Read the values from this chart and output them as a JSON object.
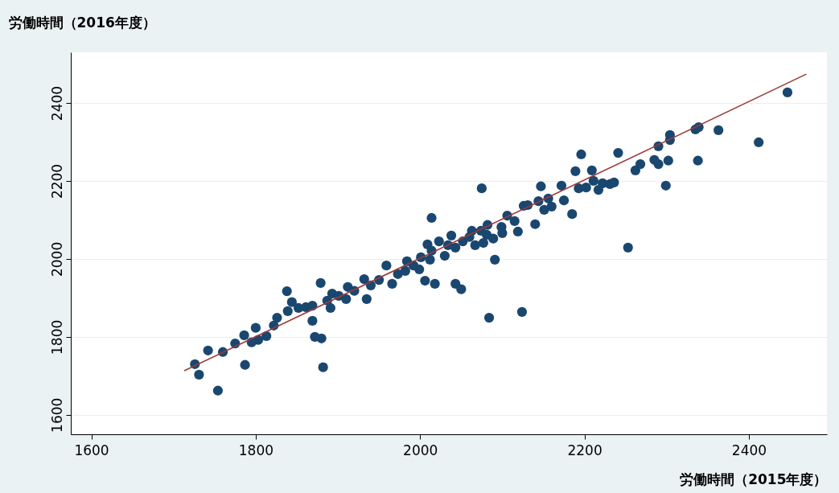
{
  "chart_data": {
    "type": "scatter",
    "xlabel": "労働時間（2015年度）",
    "ylabel": "労働時間（2016年度）",
    "xlim": [
      1575,
      2495
    ],
    "ylim": [
      1550,
      2530
    ],
    "xticks": [
      1600,
      1800,
      2000,
      2200,
      2400
    ],
    "yticks": [
      1600,
      1800,
      2000,
      2200,
      2400
    ],
    "grid": "y",
    "series": [
      {
        "marker": "circle",
        "color": "#1a476f",
        "x": [
          1726,
          1731,
          1742,
          1754,
          1760,
          1775,
          1787,
          1786,
          1800,
          1795,
          1803,
          1813,
          1822,
          1826,
          1838,
          1844,
          1839,
          1852,
          1861,
          1869,
          1869,
          1872,
          1880,
          1882,
          1879,
          1887,
          1891,
          1893,
          1901,
          1910,
          1912,
          1920,
          1932,
          1935,
          1940,
          1950,
          1959,
          1966,
          1973,
          1982,
          1984,
          1992,
          1999,
          2001,
          2006,
          2009,
          2012,
          2014,
          2014,
          2018,
          2023,
          2030,
          2034,
          2038,
          2043,
          2043,
          2050,
          2052,
          2060,
          2063,
          2067,
          2074,
          2077,
          2081,
          2084,
          2089,
          2091,
          2099,
          2075,
          2082,
          2100,
          2106,
          2115,
          2119,
          2124,
          2126,
          2131,
          2140,
          2144,
          2147,
          2151,
          2156,
          2160,
          2172,
          2175,
          2185,
          2189,
          2193,
          2196,
          2202,
          2209,
          2211,
          2217,
          2222,
          2231,
          2236,
          2241,
          2253,
          2262,
          2268,
          2285,
          2290,
          2299,
          2302,
          2290,
          2304,
          2304,
          2335,
          2339,
          2338,
          2363,
          2412,
          2447
        ],
        "values": [
          1730,
          1703,
          1765,
          1662,
          1761,
          1783,
          1728,
          1804,
          1823,
          1786,
          1792,
          1802,
          1829,
          1849,
          1917,
          1889,
          1866,
          1874,
          1876,
          1880,
          1841,
          1800,
          1796,
          1722,
          1938,
          1893,
          1874,
          1911,
          1905,
          1897,
          1928,
          1918,
          1948,
          1897,
          1932,
          1946,
          1983,
          1936,
          1961,
          1969,
          1994,
          1983,
          1973,
          2004,
          1944,
          2037,
          1998,
          2021,
          2105,
          1936,
          2045,
          2008,
          2035,
          2060,
          1936,
          2029,
          1922,
          2045,
          2056,
          2072,
          2035,
          2072,
          2041,
          2062,
          1849,
          2052,
          1998,
          2082,
          2181,
          2087,
          2066,
          2111,
          2097,
          2070,
          1864,
          2136,
          2138,
          2089,
          2148,
          2186,
          2126,
          2155,
          2134,
          2188,
          2150,
          2115,
          2225,
          2181,
          2268,
          2183,
          2227,
          2200,
          2177,
          2194,
          2192,
          2196,
          2272,
          2029,
          2227,
          2243,
          2254,
          2243,
          2188,
          2252,
          2289,
          2318,
          2305,
          2332,
          2338,
          2252,
          2330,
          2299,
          2427
        ]
      },
      {
        "type": "line",
        "color": "#9c3a3a",
        "x": [
          1713,
          2470
        ],
        "values": [
          1713,
          2474
        ]
      }
    ]
  }
}
